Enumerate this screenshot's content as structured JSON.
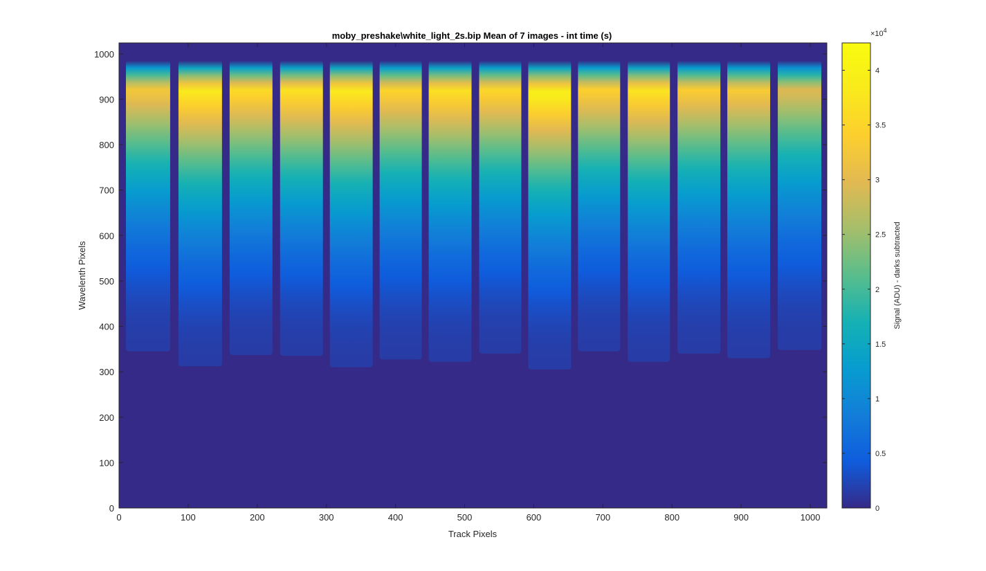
{
  "chart_data": {
    "type": "heatmap",
    "title": "moby_preshake\\white_light_2s.bip  Mean of 7 images - int time (s)",
    "xlabel": "Track Pixels",
    "ylabel": "Wavelenth Pixels",
    "xlim": [
      0,
      1024
    ],
    "ylim": [
      0,
      1024
    ],
    "xticks": [
      0,
      100,
      200,
      300,
      400,
      500,
      600,
      700,
      800,
      900,
      1000
    ],
    "yticks": [
      0,
      100,
      200,
      300,
      400,
      500,
      600,
      700,
      800,
      900,
      1000
    ],
    "xtick_labels": [
      "0",
      "100",
      "200",
      "300",
      "400",
      "500",
      "600",
      "700",
      "800",
      "900",
      "1000"
    ],
    "ytick_labels": [
      "0",
      "100",
      "200",
      "300",
      "400",
      "500",
      "600",
      "700",
      "800",
      "900",
      "1000"
    ],
    "background_value": 0,
    "colorbar": {
      "label": "Signal (ADU) - darks subtracted",
      "exponent_label": "×10",
      "exponent_power": "4",
      "range": [
        0,
        4.25
      ],
      "ticks": [
        0,
        0.5,
        1,
        1.5,
        2,
        2.5,
        3,
        3.5,
        4
      ],
      "tick_labels": [
        "0",
        "0.5",
        "1",
        "1.5",
        "2",
        "2.5",
        "3",
        "3.5",
        "4"
      ],
      "colormap": "parula"
    },
    "tracks": [
      {
        "x_start": 10,
        "x_end": 74,
        "y_bottom": 345,
        "y_top": 985,
        "peak_y": 920,
        "peak_value": 3.3
      },
      {
        "x_start": 86,
        "x_end": 149,
        "y_bottom": 312,
        "y_top": 985,
        "peak_y": 920,
        "peak_value": 3.85
      },
      {
        "x_start": 160,
        "x_end": 222,
        "y_bottom": 337,
        "y_top": 985,
        "peak_y": 920,
        "peak_value": 3.6
      },
      {
        "x_start": 233,
        "x_end": 295,
        "y_bottom": 335,
        "y_top": 985,
        "peak_y": 920,
        "peak_value": 3.7
      },
      {
        "x_start": 305,
        "x_end": 367,
        "y_bottom": 310,
        "y_top": 985,
        "peak_y": 920,
        "peak_value": 3.85
      },
      {
        "x_start": 377,
        "x_end": 438,
        "y_bottom": 327,
        "y_top": 985,
        "peak_y": 920,
        "peak_value": 3.5
      },
      {
        "x_start": 448,
        "x_end": 510,
        "y_bottom": 322,
        "y_top": 985,
        "peak_y": 920,
        "peak_value": 3.7
      },
      {
        "x_start": 521,
        "x_end": 582,
        "y_bottom": 340,
        "y_top": 985,
        "peak_y": 920,
        "peak_value": 3.55
      },
      {
        "x_start": 592,
        "x_end": 654,
        "y_bottom": 305,
        "y_top": 985,
        "peak_y": 915,
        "peak_value": 4.0
      },
      {
        "x_start": 664,
        "x_end": 725,
        "y_bottom": 345,
        "y_top": 985,
        "peak_y": 920,
        "peak_value": 3.45
      },
      {
        "x_start": 736,
        "x_end": 797,
        "y_bottom": 322,
        "y_top": 985,
        "peak_y": 920,
        "peak_value": 3.75
      },
      {
        "x_start": 808,
        "x_end": 870,
        "y_bottom": 340,
        "y_top": 985,
        "peak_y": 920,
        "peak_value": 3.4
      },
      {
        "x_start": 880,
        "x_end": 942,
        "y_bottom": 330,
        "y_top": 985,
        "peak_y": 920,
        "peak_value": 3.35
      },
      {
        "x_start": 953,
        "x_end": 1016,
        "y_bottom": 348,
        "y_top": 985,
        "peak_y": 920,
        "peak_value": 3.0
      }
    ]
  }
}
